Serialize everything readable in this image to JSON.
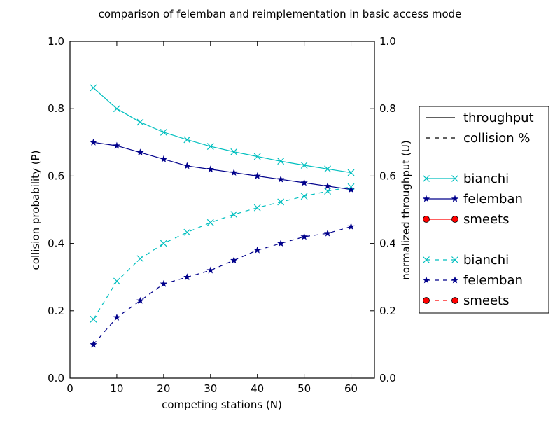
{
  "chart_data": {
    "type": "line",
    "title": "comparison of felemban and reimplementation in basic access mode",
    "xlabel": "competing stations (N)",
    "ylabel_left": "collision probability (P)",
    "ylabel_right": "normalized throughput (U)",
    "xlim": [
      0,
      65
    ],
    "ylim_left": [
      0.0,
      1.0
    ],
    "ylim_right": [
      0.0,
      1.0
    ],
    "x_ticks": [
      "0",
      "10",
      "20",
      "30",
      "40",
      "50",
      "60"
    ],
    "y_ticks": [
      "0.0",
      "0.2",
      "0.4",
      "0.6",
      "0.8",
      "1.0"
    ],
    "grid": false,
    "legend_placement": "right, outside plot",
    "legend": {
      "style_entries": [
        {
          "label": "throughput",
          "linestyle": "solid"
        },
        {
          "label": "collision %",
          "linestyle": "dashed"
        }
      ],
      "series_entries": [
        {
          "label": "bianchi",
          "linestyle": "solid",
          "marker": "x",
          "color": "#00bfbf"
        },
        {
          "label": "felemban",
          "linestyle": "solid",
          "marker": "star",
          "color": "#00008b"
        },
        {
          "label": "smeets",
          "linestyle": "solid",
          "marker": "circle",
          "color": "#ff0000"
        },
        {
          "label": "bianchi",
          "linestyle": "dashed",
          "marker": "x",
          "color": "#00bfbf"
        },
        {
          "label": "felemban",
          "linestyle": "dashed",
          "marker": "star",
          "color": "#00008b"
        },
        {
          "label": "smeets",
          "linestyle": "dashed",
          "marker": "circle",
          "color": "#ff0000"
        }
      ]
    },
    "series": [
      {
        "name": "bianchi",
        "kind": "throughput",
        "axis": "right",
        "linestyle": "solid",
        "marker": "x",
        "color": "#00bfbf",
        "x": [
          5,
          10,
          15,
          20,
          25,
          30,
          35,
          40,
          45,
          50,
          55,
          60
        ],
        "values": [
          0.862,
          0.8,
          0.76,
          0.73,
          0.708,
          0.688,
          0.672,
          0.658,
          0.644,
          0.632,
          0.621,
          0.61
        ]
      },
      {
        "name": "felemban",
        "kind": "throughput",
        "axis": "right",
        "linestyle": "solid",
        "marker": "star",
        "color": "#00008b",
        "x": [
          5,
          10,
          15,
          20,
          25,
          30,
          35,
          40,
          45,
          50,
          55,
          60
        ],
        "values": [
          0.7,
          0.69,
          0.67,
          0.65,
          0.63,
          0.62,
          0.61,
          0.6,
          0.59,
          0.58,
          0.57,
          0.56
        ]
      },
      {
        "name": "bianchi",
        "kind": "collision %",
        "axis": "left",
        "linestyle": "dashed",
        "marker": "x",
        "color": "#00bfbf",
        "x": [
          5,
          10,
          15,
          20,
          25,
          30,
          35,
          40,
          45,
          50,
          55,
          60
        ],
        "values": [
          0.175,
          0.288,
          0.355,
          0.4,
          0.433,
          0.462,
          0.486,
          0.506,
          0.523,
          0.54,
          0.555,
          0.568
        ]
      },
      {
        "name": "felemban",
        "kind": "collision %",
        "axis": "left",
        "linestyle": "dashed",
        "marker": "star",
        "color": "#00008b",
        "x": [
          5,
          10,
          15,
          20,
          25,
          30,
          35,
          40,
          45,
          50,
          55,
          60
        ],
        "values": [
          0.1,
          0.18,
          0.23,
          0.28,
          0.3,
          0.32,
          0.35,
          0.38,
          0.4,
          0.42,
          0.43,
          0.45
        ]
      }
    ]
  }
}
